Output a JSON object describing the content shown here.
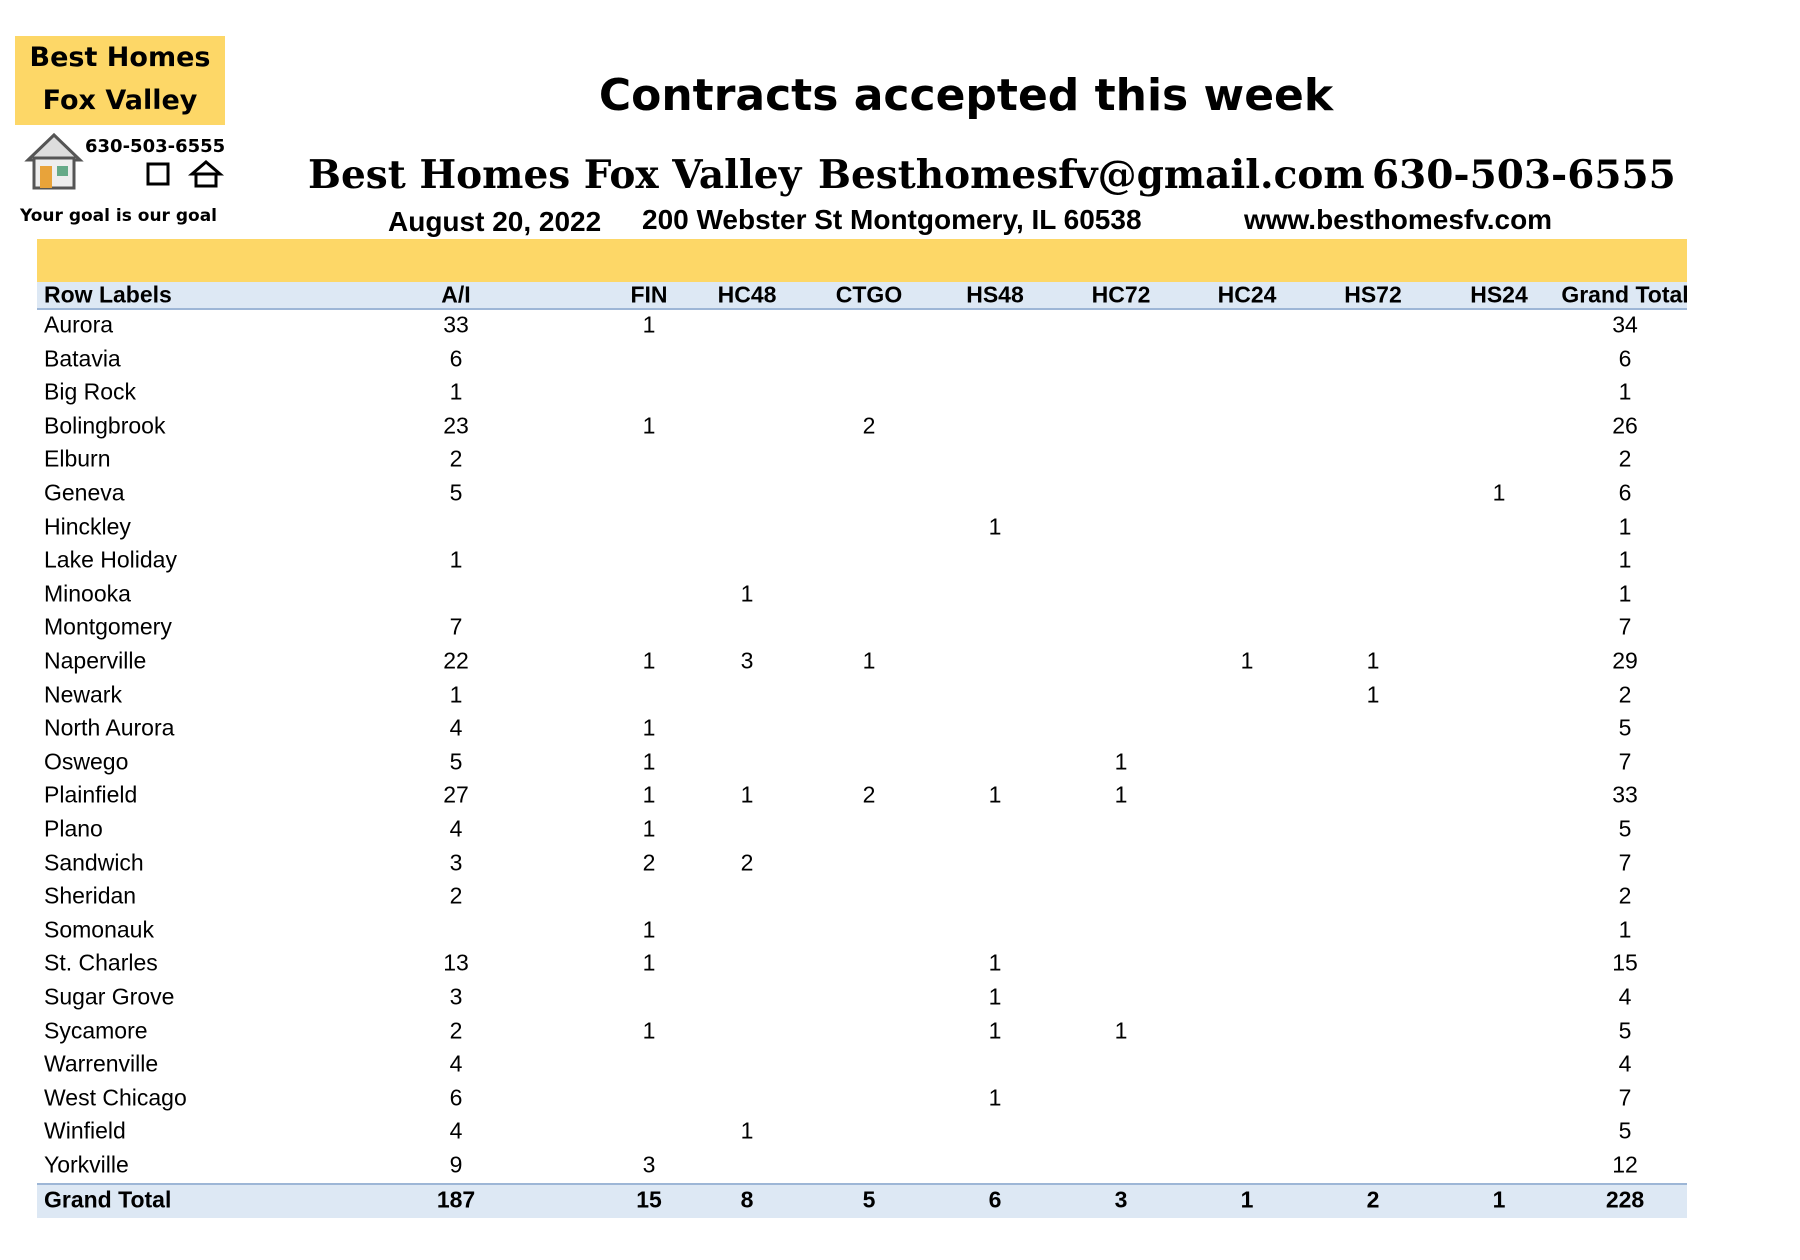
{
  "logo": {
    "line1": "Best Homes",
    "line2": "Fox Valley",
    "phone": "630-503-6555",
    "tagline": "Your goal is our goal"
  },
  "header": {
    "title": "Contracts accepted this week",
    "company": "Best Homes Fox Valley",
    "email": "Besthomesfv@gmail.com",
    "phone": "630-503-6555",
    "date": "August 20, 2022",
    "address": "200 Webster St Montgomery, IL 60538",
    "website": "www.besthomesfv.com"
  },
  "table": {
    "columns": [
      "Row Labels",
      "A/I",
      "FIN",
      "HC48",
      "CTGO",
      "HS48",
      "HC72",
      "HC24",
      "HS72",
      "HS24",
      "Grand Total"
    ],
    "rows": [
      [
        "Aurora",
        33,
        1,
        null,
        null,
        null,
        null,
        null,
        null,
        null,
        34
      ],
      [
        "Batavia",
        6,
        null,
        null,
        null,
        null,
        null,
        null,
        null,
        null,
        6
      ],
      [
        "Big Rock",
        1,
        null,
        null,
        null,
        null,
        null,
        null,
        null,
        null,
        1
      ],
      [
        "Bolingbrook",
        23,
        1,
        null,
        2,
        null,
        null,
        null,
        null,
        null,
        26
      ],
      [
        "Elburn",
        2,
        null,
        null,
        null,
        null,
        null,
        null,
        null,
        null,
        2
      ],
      [
        "Geneva",
        5,
        null,
        null,
        null,
        null,
        null,
        null,
        null,
        1,
        6
      ],
      [
        "Hinckley",
        null,
        null,
        null,
        null,
        1,
        null,
        null,
        null,
        null,
        1
      ],
      [
        "Lake Holiday",
        1,
        null,
        null,
        null,
        null,
        null,
        null,
        null,
        null,
        1
      ],
      [
        "Minooka",
        null,
        null,
        1,
        null,
        null,
        null,
        null,
        null,
        null,
        1
      ],
      [
        "Montgomery",
        7,
        null,
        null,
        null,
        null,
        null,
        null,
        null,
        null,
        7
      ],
      [
        "Naperville",
        22,
        1,
        3,
        1,
        null,
        null,
        1,
        1,
        null,
        29
      ],
      [
        "Newark",
        1,
        null,
        null,
        null,
        null,
        null,
        null,
        1,
        null,
        2
      ],
      [
        "North Aurora",
        4,
        1,
        null,
        null,
        null,
        null,
        null,
        null,
        null,
        5
      ],
      [
        "Oswego",
        5,
        1,
        null,
        null,
        null,
        1,
        null,
        null,
        null,
        7
      ],
      [
        "Plainfield",
        27,
        1,
        1,
        2,
        1,
        1,
        null,
        null,
        null,
        33
      ],
      [
        "Plano",
        4,
        1,
        null,
        null,
        null,
        null,
        null,
        null,
        null,
        5
      ],
      [
        "Sandwich",
        3,
        2,
        2,
        null,
        null,
        null,
        null,
        null,
        null,
        7
      ],
      [
        "Sheridan",
        2,
        null,
        null,
        null,
        null,
        null,
        null,
        null,
        null,
        2
      ],
      [
        "Somonauk",
        null,
        1,
        null,
        null,
        null,
        null,
        null,
        null,
        null,
        1
      ],
      [
        "St. Charles",
        13,
        1,
        null,
        null,
        1,
        null,
        null,
        null,
        null,
        15
      ],
      [
        "Sugar Grove",
        3,
        null,
        null,
        null,
        1,
        null,
        null,
        null,
        null,
        4
      ],
      [
        "Sycamore",
        2,
        1,
        null,
        null,
        1,
        1,
        null,
        null,
        null,
        5
      ],
      [
        "Warrenville",
        4,
        null,
        null,
        null,
        null,
        null,
        null,
        null,
        null,
        4
      ],
      [
        "West Chicago",
        6,
        null,
        null,
        null,
        1,
        null,
        null,
        null,
        null,
        7
      ],
      [
        "Winfield",
        4,
        null,
        1,
        null,
        null,
        null,
        null,
        null,
        null,
        5
      ],
      [
        "Yorkville",
        9,
        3,
        null,
        null,
        null,
        null,
        null,
        null,
        null,
        12
      ]
    ],
    "total": [
      "Grand Total",
      187,
      15,
      8,
      5,
      6,
      3,
      1,
      2,
      1,
      228
    ]
  }
}
